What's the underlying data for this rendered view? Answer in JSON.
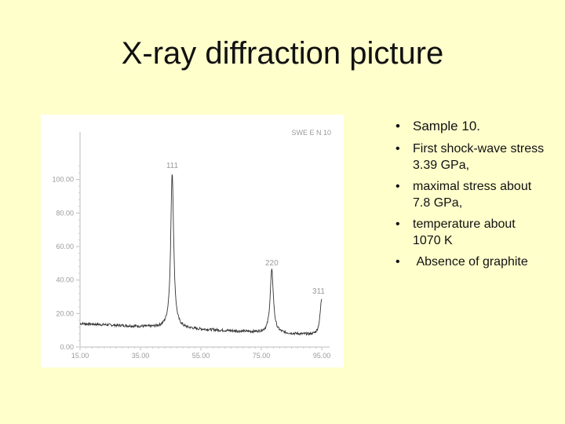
{
  "slide": {
    "title": "X-ray diffraction picture"
  },
  "bullets": [
    "Sample 10.",
    "First shock-wave stress 3.39 GPa,",
    "maximal stress about 7.8 GPa,",
    "temperature about 1070 K",
    " Absence of graphite"
  ],
  "chart_data": {
    "type": "line",
    "title": "SWE E N 10",
    "xlabel": "",
    "ylabel": "",
    "xlim": [
      15,
      90
    ],
    "ylim": [
      0,
      120
    ],
    "x_ticks": [
      "15.00",
      "35.00",
      "55.00",
      "75.00",
      "95.00"
    ],
    "y_ticks": [
      "0.00",
      "20.00",
      "40.00",
      "60.00",
      "80.00",
      "100.00"
    ],
    "grid": false,
    "line_color": "#333333",
    "peaks": [
      {
        "label": "111",
        "x": 43.6,
        "y": 104
      },
      {
        "label": "220",
        "x": 74.5,
        "y": 46
      },
      {
        "label": "311",
        "x": 90.0,
        "y": 29
      }
    ],
    "baseline": {
      "start": 14,
      "end": 7
    }
  }
}
